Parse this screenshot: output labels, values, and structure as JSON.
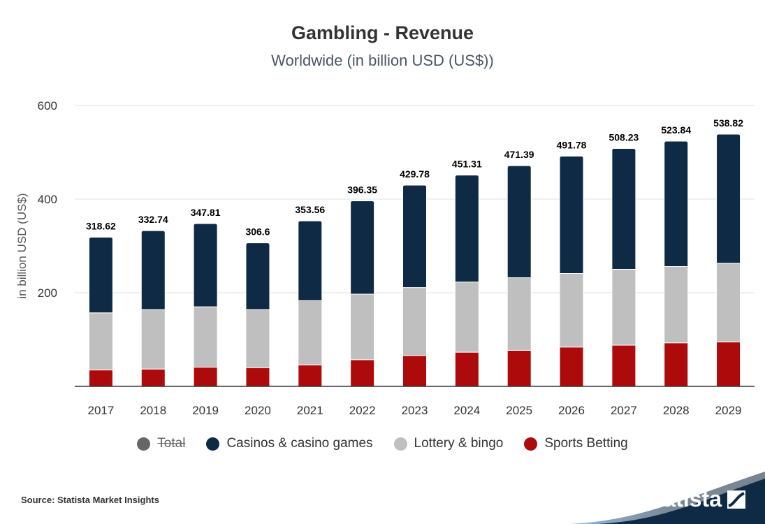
{
  "header": {
    "title": "Gambling - Revenue",
    "subtitle": "Worldwide (in billion USD (US$))"
  },
  "legend": [
    {
      "label": "Total",
      "color": "#666666",
      "hidden": true
    },
    {
      "label": "Casinos & casino games",
      "color": "#0f2a44",
      "hidden": false
    },
    {
      "label": "Lottery & bingo",
      "color": "#bfbfbf",
      "hidden": false
    },
    {
      "label": "Sports Betting",
      "color": "#ad0b0b",
      "hidden": false
    }
  ],
  "footer": {
    "source": "Source: Statista Market Insights",
    "brand": "statista"
  },
  "chart_data": {
    "type": "bar",
    "stacked": true,
    "categories": [
      "2017",
      "2018",
      "2019",
      "2020",
      "2021",
      "2022",
      "2023",
      "2024",
      "2025",
      "2026",
      "2027",
      "2028",
      "2029"
    ],
    "series": [
      {
        "name": "Sports Betting",
        "color": "#ad0b0b",
        "values": [
          35,
          37,
          41,
          40,
          46,
          57,
          66,
          73,
          77,
          84,
          88,
          93,
          95
        ]
      },
      {
        "name": "Lottery & bingo",
        "color": "#bfbfbf",
        "values": [
          122,
          127,
          129,
          124,
          137,
          140,
          145,
          150,
          155,
          157,
          162,
          163,
          168
        ]
      },
      {
        "name": "Casinos & casino games",
        "color": "#0f2a44",
        "values": [
          161.62,
          168.74,
          177.81,
          142.6,
          170.56,
          199.35,
          218.78,
          228.31,
          239.39,
          250.78,
          258.23,
          267.84,
          275.82
        ]
      }
    ],
    "totals": [
      "318.62",
      "332.74",
      "347.81",
      "306.6",
      "353.56",
      "396.35",
      "429.78",
      "451.31",
      "471.39",
      "491.78",
      "508.23",
      "523.84",
      "538.82"
    ],
    "ylabel": "in billion USD (US$)",
    "yticks": [
      200,
      400,
      600
    ],
    "ylim": [
      0,
      600
    ],
    "grid": true,
    "legend_position": "bottom"
  }
}
